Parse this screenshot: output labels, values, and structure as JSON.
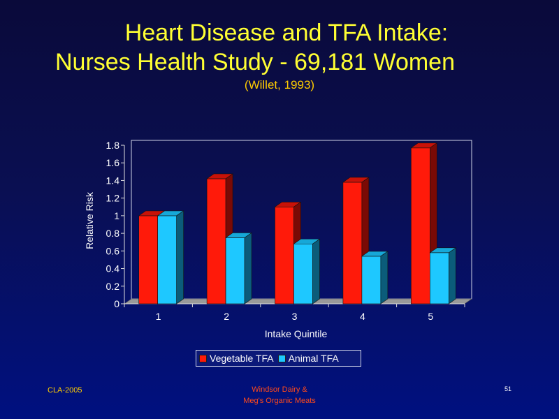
{
  "title_line1": "Heart Disease and TFA Intake:",
  "title_line2": "Nurses Health Study - 69,181 Women",
  "citation": "(Willet, 1993)",
  "footer_left": "CLA-2005",
  "footer_mid_line1": "Windsor  Dairy  &",
  "footer_mid_line2": "Meg's  Organic  Meats",
  "slide_number": "51",
  "chart_data": {
    "type": "bar",
    "categories": [
      "1",
      "2",
      "3",
      "4",
      "5"
    ],
    "series": [
      {
        "name": "Vegetable TFA",
        "values": [
          1.0,
          1.42,
          1.1,
          1.38,
          1.77
        ],
        "color": "#ff1a0a",
        "top": "#c81208",
        "side": "#7a0a05"
      },
      {
        "name": "Animal TFA",
        "values": [
          1.0,
          0.75,
          0.68,
          0.54,
          0.58
        ],
        "color": "#1ec8ff",
        "top": "#16a8d8",
        "side": "#0b5c7a"
      }
    ],
    "xlabel": "Intake  Quintile",
    "ylabel": "Relative  Risk",
    "ylim": [
      0,
      1.8
    ],
    "yticks": [
      "0",
      "0.2",
      "0.4",
      "0.6",
      "0.8",
      "1",
      "1.2",
      "1.4",
      "1.6",
      "1.8"
    ],
    "legend_position": "bottom",
    "grid": false
  }
}
